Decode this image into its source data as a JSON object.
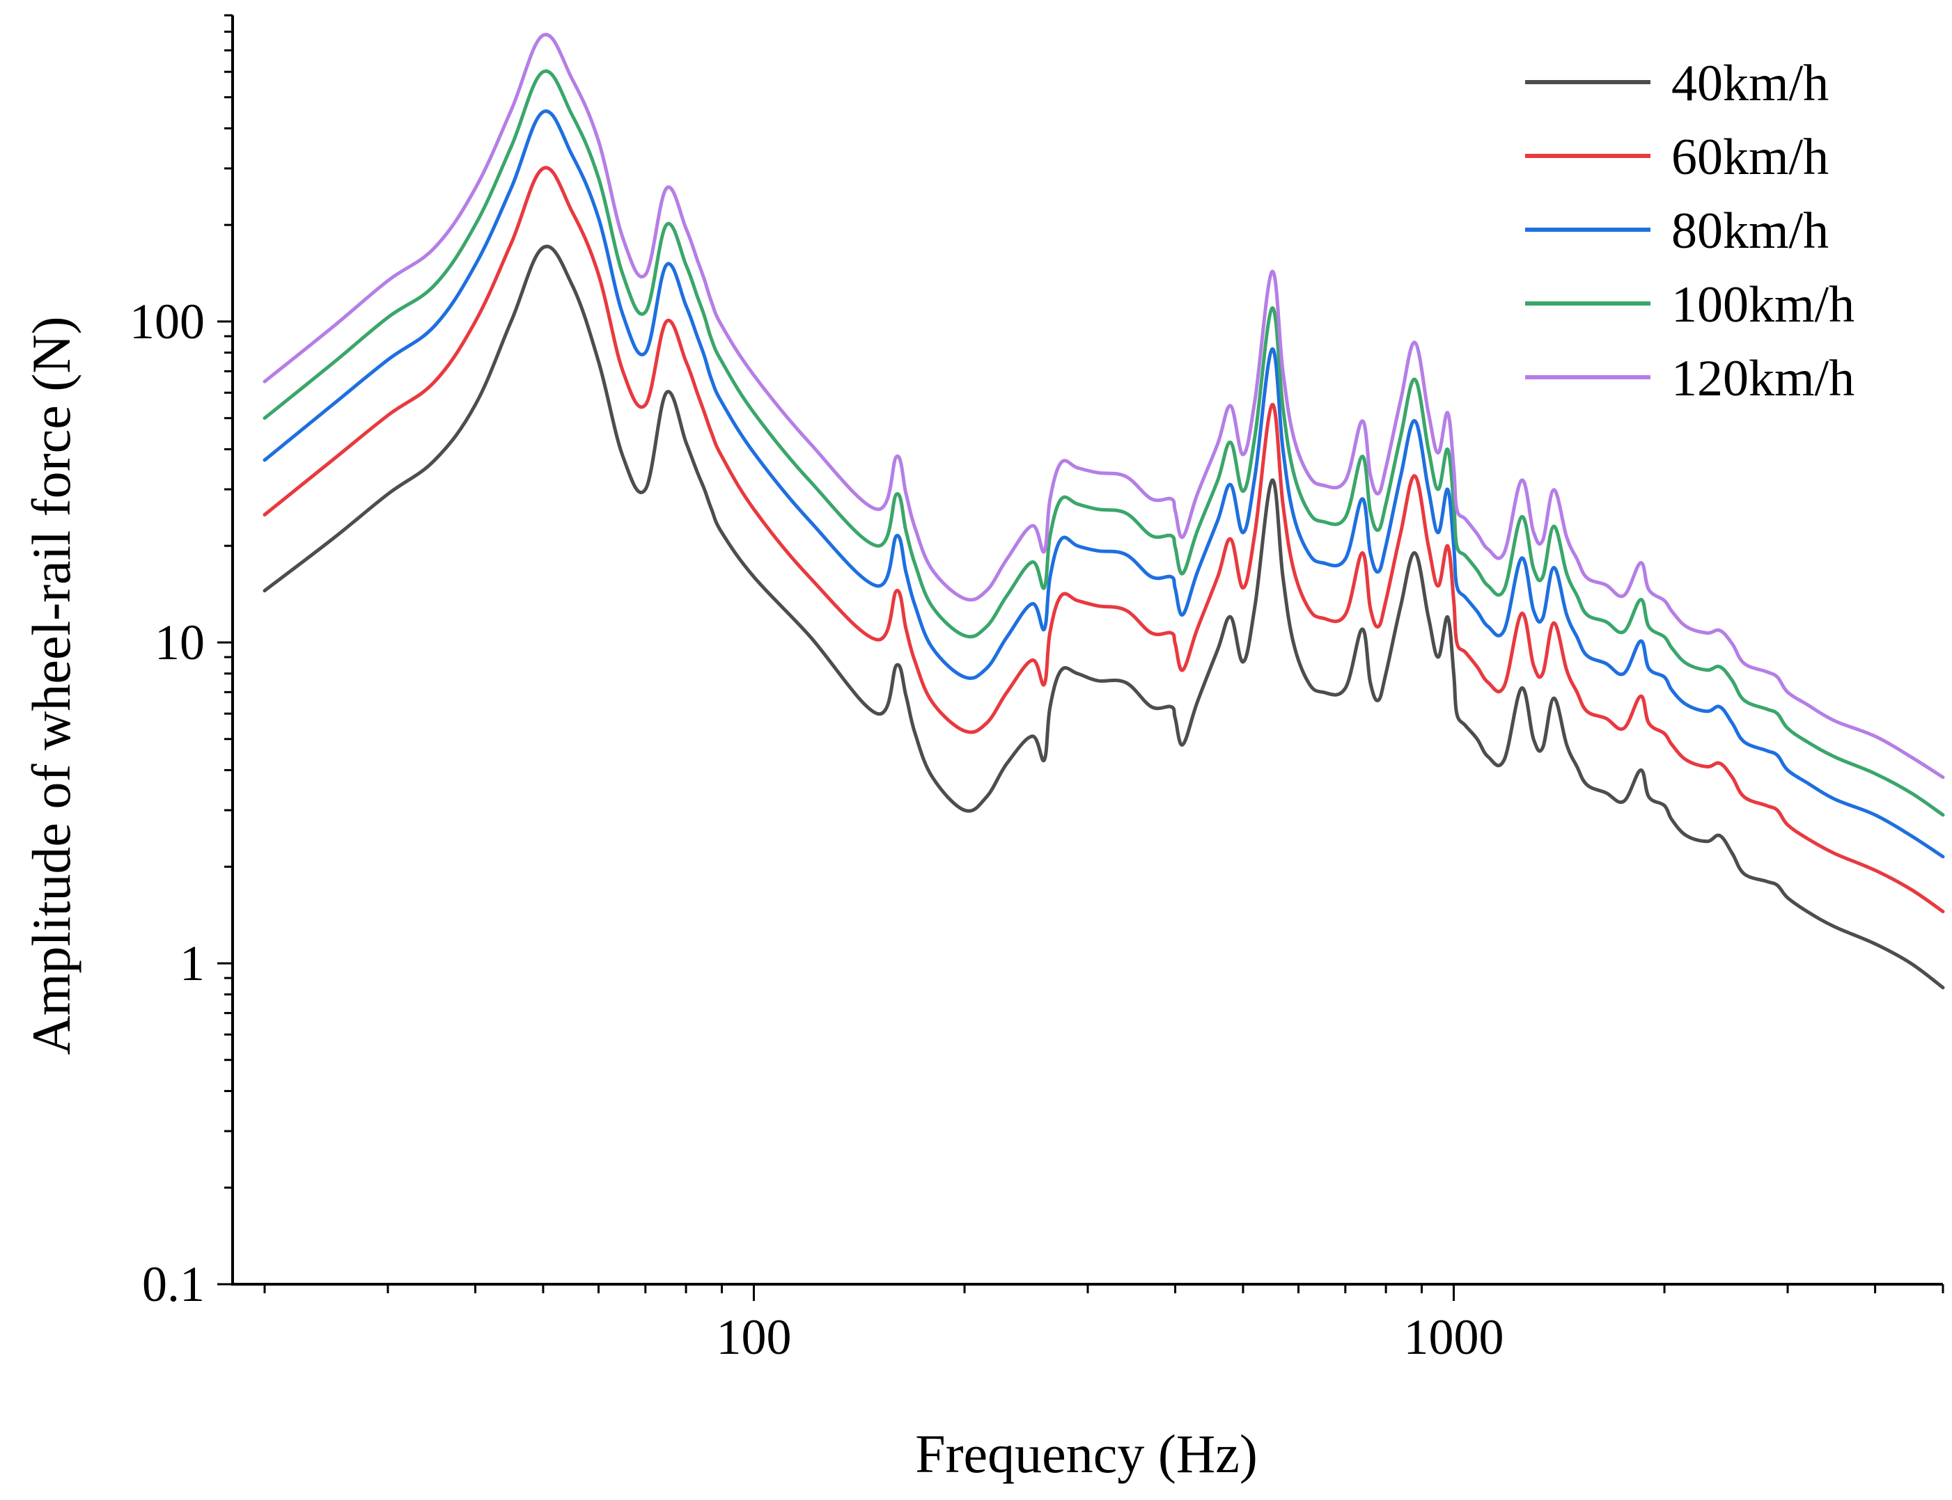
{
  "chart_data": {
    "type": "line",
    "title": "",
    "xlabel": "Frequency (Hz)",
    "ylabel": "Amplitude of wheel-rail force (N)",
    "xscale": "log",
    "yscale": "log",
    "xlim": [
      18,
      5000
    ],
    "ylim": [
      0.1,
      900
    ],
    "x_tick_values": [
      100,
      1000
    ],
    "x_tick_labels": [
      "100",
      "1000"
    ],
    "y_tick_values": [
      0.1,
      1,
      10,
      100
    ],
    "y_tick_labels": [
      "0.1",
      "1",
      "10",
      "100"
    ],
    "grid": false,
    "legend_position": "top-right",
    "x": [
      20,
      25,
      30,
      35,
      40,
      45,
      50,
      55,
      60,
      65,
      70,
      75,
      80,
      83,
      85,
      87,
      90,
      100,
      120,
      150,
      160,
      165,
      170,
      180,
      200,
      215,
      230,
      250,
      260,
      265,
      275,
      290,
      310,
      340,
      370,
      395,
      400,
      410,
      430,
      460,
      480,
      500,
      520,
      550,
      570,
      590,
      620,
      650,
      700,
      740,
      760,
      780,
      800,
      840,
      880,
      920,
      950,
      980,
      1000,
      1010,
      1040,
      1080,
      1120,
      1180,
      1250,
      1300,
      1340,
      1390,
      1450,
      1500,
      1550,
      1650,
      1750,
      1850,
      1900,
      2000,
      2050,
      2150,
      2300,
      2400,
      2500,
      2600,
      2800,
      2900,
      3000,
      3200,
      3500,
      4000,
      4500,
      5000
    ],
    "series": [
      {
        "name": "40km/h",
        "color": "#4d4d4d",
        "values": [
          14.5,
          21,
          29,
          37,
          55,
          100,
          170,
          130,
          75,
          38,
          30,
          60,
          42,
          34,
          30,
          26,
          22,
          16,
          10.5,
          6.0,
          8.5,
          6.8,
          5.2,
          3.8,
          3.0,
          3.3,
          4.2,
          5.1,
          4.3,
          6.3,
          8.2,
          8.0,
          7.6,
          7.5,
          6.3,
          6.3,
          5.8,
          4.8,
          6.5,
          9.5,
          12.0,
          8.7,
          13,
          32,
          16,
          10,
          7.5,
          7.0,
          7.2,
          11,
          7.5,
          6.6,
          8,
          13,
          19,
          12,
          9,
          12,
          8,
          6,
          5.5,
          5.0,
          4.4,
          4.3,
          7.2,
          5.0,
          4.7,
          6.7,
          4.8,
          4.1,
          3.6,
          3.4,
          3.2,
          4.0,
          3.3,
          3.1,
          2.8,
          2.5,
          2.4,
          2.5,
          2.2,
          1.9,
          1.8,
          1.75,
          1.6,
          1.45,
          1.3,
          1.15,
          1.0,
          0.84
        ]
      },
      {
        "name": "60km/h",
        "color": "#e8393f",
        "values": [
          25,
          37,
          51,
          65,
          100,
          175,
          300,
          220,
          140,
          70,
          55,
          100,
          75,
          60,
          52,
          45,
          38,
          26,
          16,
          10.2,
          14.5,
          11,
          8.7,
          6.5,
          5.3,
          5.6,
          7.0,
          8.8,
          7.4,
          10.8,
          14.0,
          13.5,
          13.0,
          12.6,
          10.7,
          10.7,
          9.9,
          8.2,
          11.0,
          16.0,
          21.0,
          14.8,
          22,
          55,
          27,
          17,
          12.8,
          11.9,
          12.2,
          19,
          12.8,
          11.2,
          13.5,
          22,
          33,
          20,
          15,
          20,
          13.5,
          10,
          9.3,
          8.4,
          7.5,
          7.3,
          12.3,
          8.5,
          8.0,
          11.5,
          8.2,
          7.0,
          6.1,
          5.8,
          5.4,
          6.8,
          5.6,
          5.2,
          4.8,
          4.3,
          4.1,
          4.2,
          3.8,
          3.3,
          3.1,
          3.0,
          2.7,
          2.45,
          2.2,
          1.95,
          1.7,
          1.45
        ]
      },
      {
        "name": "80km/h",
        "color": "#1e6fe0",
        "values": [
          37,
          55,
          76,
          97,
          150,
          260,
          450,
          330,
          210,
          105,
          80,
          150,
          112,
          90,
          78,
          66,
          56,
          39,
          24,
          15,
          21.5,
          16.5,
          13,
          9.6,
          7.8,
          8.3,
          10.4,
          13.2,
          11,
          16,
          21,
          20,
          19.3,
          18.8,
          16,
          16,
          14.7,
          12.2,
          16.5,
          24,
          31,
          22,
          33,
          82,
          40,
          25,
          19,
          17.7,
          18.2,
          28,
          19,
          16.6,
          20,
          33,
          49,
          30,
          22,
          30,
          20,
          15,
          13.8,
          12.5,
          11.2,
          10.9,
          18.3,
          12.6,
          11.9,
          17.1,
          12.2,
          10.4,
          9.1,
          8.6,
          8.0,
          10.1,
          8.3,
          7.8,
          7.1,
          6.4,
          6.1,
          6.3,
          5.6,
          4.9,
          4.6,
          4.45,
          4.0,
          3.65,
          3.25,
          2.9,
          2.5,
          2.15
        ]
      },
      {
        "name": "100km/h",
        "color": "#3aa66a",
        "values": [
          50,
          74,
          103,
          130,
          200,
          350,
          600,
          440,
          280,
          140,
          107,
          200,
          150,
          120,
          104,
          88,
          75,
          52,
          32,
          20,
          29,
          22.2,
          17.5,
          12.9,
          10.5,
          11.2,
          14,
          17.8,
          14.8,
          21.5,
          28,
          27,
          26,
          25.3,
          21.5,
          21.5,
          19.8,
          16.4,
          22.2,
          32,
          42,
          29.6,
          44,
          110,
          54,
          34,
          25.6,
          23.8,
          24.5,
          38,
          25.6,
          22.4,
          27,
          44,
          66,
          40,
          30,
          40,
          27,
          20,
          18.6,
          16.8,
          15,
          14.6,
          24.6,
          17,
          16,
          23,
          16.4,
          14,
          12.2,
          11.6,
          10.8,
          13.6,
          11.2,
          10.4,
          9.6,
          8.6,
          8.2,
          8.4,
          7.6,
          6.6,
          6.2,
          6.0,
          5.4,
          4.9,
          4.4,
          3.9,
          3.4,
          2.9
        ]
      },
      {
        "name": "120km/h",
        "color": "#b57ee6",
        "values": [
          65,
          96,
          134,
          170,
          260,
          455,
          780,
          570,
          365,
          182,
          140,
          260,
          195,
          156,
          135,
          115,
          97,
          68,
          42,
          26,
          38,
          29,
          22.7,
          16.8,
          13.7,
          14.5,
          18.2,
          23.1,
          19.2,
          28,
          36.4,
          35,
          33.8,
          32.9,
          28,
          28,
          25.7,
          21.3,
          28.9,
          41.6,
          54.6,
          38.5,
          57,
          143,
          70,
          44,
          33.3,
          30.9,
          31.9,
          49,
          33.3,
          29.1,
          35,
          57,
          86,
          52,
          39,
          52,
          35,
          26,
          24.2,
          21.8,
          19.5,
          19,
          32,
          22.1,
          20.8,
          29.9,
          21.3,
          18.2,
          15.9,
          15.1,
          14,
          17.7,
          14.6,
          13.5,
          12.5,
          11.2,
          10.7,
          10.9,
          9.9,
          8.6,
          8.1,
          7.8,
          7.0,
          6.4,
          5.7,
          5.1,
          4.4,
          3.8
        ]
      }
    ]
  }
}
